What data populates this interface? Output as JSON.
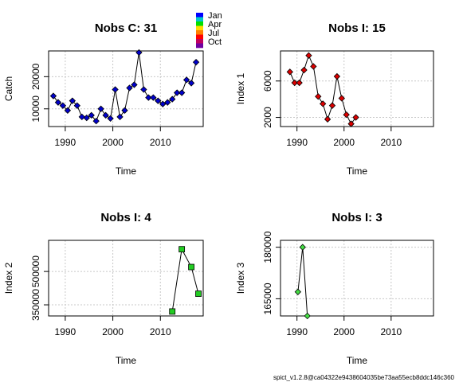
{
  "footer": "spict_v1.2.8@ca04322e9438604035be73aa55ecb8ddc146c360",
  "legend": {
    "labels": [
      "Jan",
      "Apr",
      "Jul",
      "Oct"
    ],
    "colors": [
      "#0000ff",
      "#00c8c8",
      "#00e000",
      "#ffdd00",
      "#ff8000",
      "#ff0000",
      "#c00060",
      "#7000a0"
    ]
  },
  "chart_data": [
    {
      "type": "line",
      "title": "Nobs C: 31",
      "xlabel": "Time",
      "ylabel": "Catch",
      "xlim": [
        1986.5,
        2019
      ],
      "ylim": [
        4500,
        28000
      ],
      "xticks": [
        1990,
        2000,
        2010
      ],
      "yticks": [
        10000,
        20000
      ],
      "ytick_labels": [
        "10000",
        "20000"
      ],
      "marker": "diamond",
      "point_color": "#0000cc",
      "x": [
        1987.5,
        1988.5,
        1989.5,
        1990.5,
        1991.5,
        1992.5,
        1993.5,
        1994.5,
        1995.5,
        1996.5,
        1997.5,
        1998.5,
        1999.5,
        2000.5,
        2001.5,
        2002.5,
        2003.5,
        2004.5,
        2005.5,
        2006.5,
        2007.5,
        2008.5,
        2009.5,
        2010.5,
        2011.5,
        2012.5,
        2013.5,
        2014.5,
        2015.5,
        2016.5,
        2017.5
      ],
      "y": [
        14000,
        12000,
        11000,
        9500,
        12500,
        11000,
        7500,
        7200,
        8000,
        6200,
        10000,
        8000,
        7000,
        16000,
        7500,
        9500,
        16500,
        17500,
        27500,
        16000,
        13500,
        13500,
        12500,
        11500,
        12000,
        13000,
        15000,
        15000,
        19000,
        18000,
        24500
      ]
    },
    {
      "type": "line",
      "title": "Nobs I: 15",
      "xlabel": "Time",
      "ylabel": "Index 1",
      "xlim": [
        1986.5,
        2019
      ],
      "ylim": [
        1000,
        9300
      ],
      "xticks": [
        1990,
        2000,
        2010
      ],
      "yticks": [
        2000,
        6000
      ],
      "ytick_labels": [
        "2000",
        "6000"
      ],
      "marker": "diamond",
      "point_color": "#dd0000",
      "x": [
        1988.5,
        1989.5,
        1990.5,
        1991.5,
        1992.5,
        1993.5,
        1994.5,
        1995.5,
        1996.5,
        1997.5,
        1998.5,
        1999.5,
        2000.5,
        2001.5,
        2002.5
      ],
      "y": [
        7000,
        5800,
        5800,
        7200,
        8800,
        7600,
        4300,
        3500,
        1800,
        3300,
        6500,
        4100,
        2300,
        1300,
        2000
      ]
    },
    {
      "type": "line",
      "title": "Nobs I: 4",
      "xlabel": "Time",
      "ylabel": "Index 2",
      "xlim": [
        1986.5,
        2019
      ],
      "ylim": [
        300000,
        640000
      ],
      "xticks": [
        1990,
        2000,
        2010
      ],
      "yticks": [
        350000,
        500000
      ],
      "ytick_labels": [
        "350000",
        "500000"
      ],
      "marker": "square",
      "point_color": "#22cc22",
      "x": [
        2012.5,
        2014.5,
        2016.5,
        2018
      ],
      "y": [
        320000,
        600000,
        520000,
        400000
      ]
    },
    {
      "type": "line",
      "title": "Nobs I: 3",
      "xlabel": "Time",
      "ylabel": "Index 3",
      "xlim": [
        1986.5,
        2019
      ],
      "ylim": [
        160000,
        182000
      ],
      "xticks": [
        1990,
        2000,
        2010
      ],
      "yticks": [
        165000,
        180000
      ],
      "ytick_labels": [
        "165000",
        "180000"
      ],
      "marker": "diamond",
      "point_color": "#44dd44",
      "x": [
        1990.2,
        1991.2,
        1992.2
      ],
      "y": [
        167000,
        180000,
        160000
      ]
    }
  ]
}
